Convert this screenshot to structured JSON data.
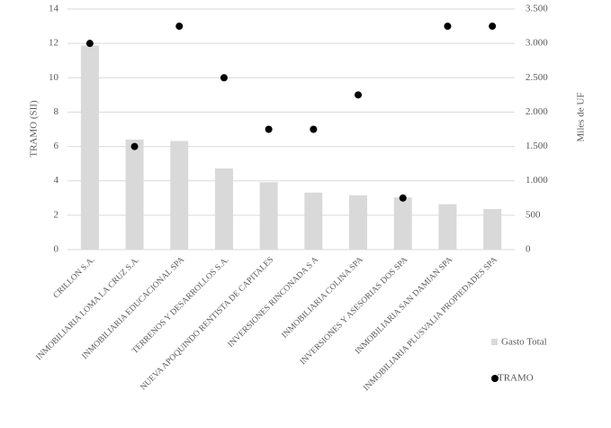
{
  "chart_data": {
    "type": "combo",
    "categories": [
      "CRILLON S.A.",
      "INMOBILIARIA LOMA LA CRUZ S.A.",
      "INMOBILIARIA EDUCACIONAL SPA",
      "TERRENOS Y DESARROLLOS S.A.",
      "NUEVA APOQUINDO RENTISTA DE CAPITALES",
      "INVERSIONES RINCONADA S A",
      "INMOBILIARIA COLINA SPA",
      "INVERSIONES Y ASESORIAS DOS SPA",
      "INMOBILIARIA SAN DAMIAN SPA",
      "INMOBILIARIA PLUSVALIA PROPIEDADES SPA"
    ],
    "series": [
      {
        "name": "Gasto Total",
        "type": "bar",
        "axis": "y2",
        "color": "#d9d9d9",
        "values": [
          2970,
          1600,
          1580,
          1180,
          980,
          830,
          790,
          760,
          660,
          590
        ]
      },
      {
        "name": "TRAMO",
        "type": "scatter",
        "color": "#000000",
        "values": [
          12,
          6,
          13,
          10,
          7,
          7,
          9,
          3,
          13,
          13
        ]
      }
    ],
    "ylabel": "TRAMO (SII)",
    "y2label": "Miles de UF",
    "ylim": [
      0,
      14
    ],
    "yticks": [
      0,
      2,
      4,
      6,
      8,
      10,
      12,
      14
    ],
    "y2lim": [
      0,
      3500
    ],
    "y2ticks": [
      0,
      500,
      {
        "value": 1000,
        "label": "1.000"
      },
      {
        "value": 1500,
        "label": "1.500"
      },
      {
        "value": 2000,
        "label": "2.000"
      },
      {
        "value": 2500,
        "label": "2.500"
      },
      {
        "value": 3000,
        "label": "3.000"
      },
      {
        "value": 3500,
        "label": "3.500"
      }
    ],
    "grid": true,
    "legend": "right"
  }
}
